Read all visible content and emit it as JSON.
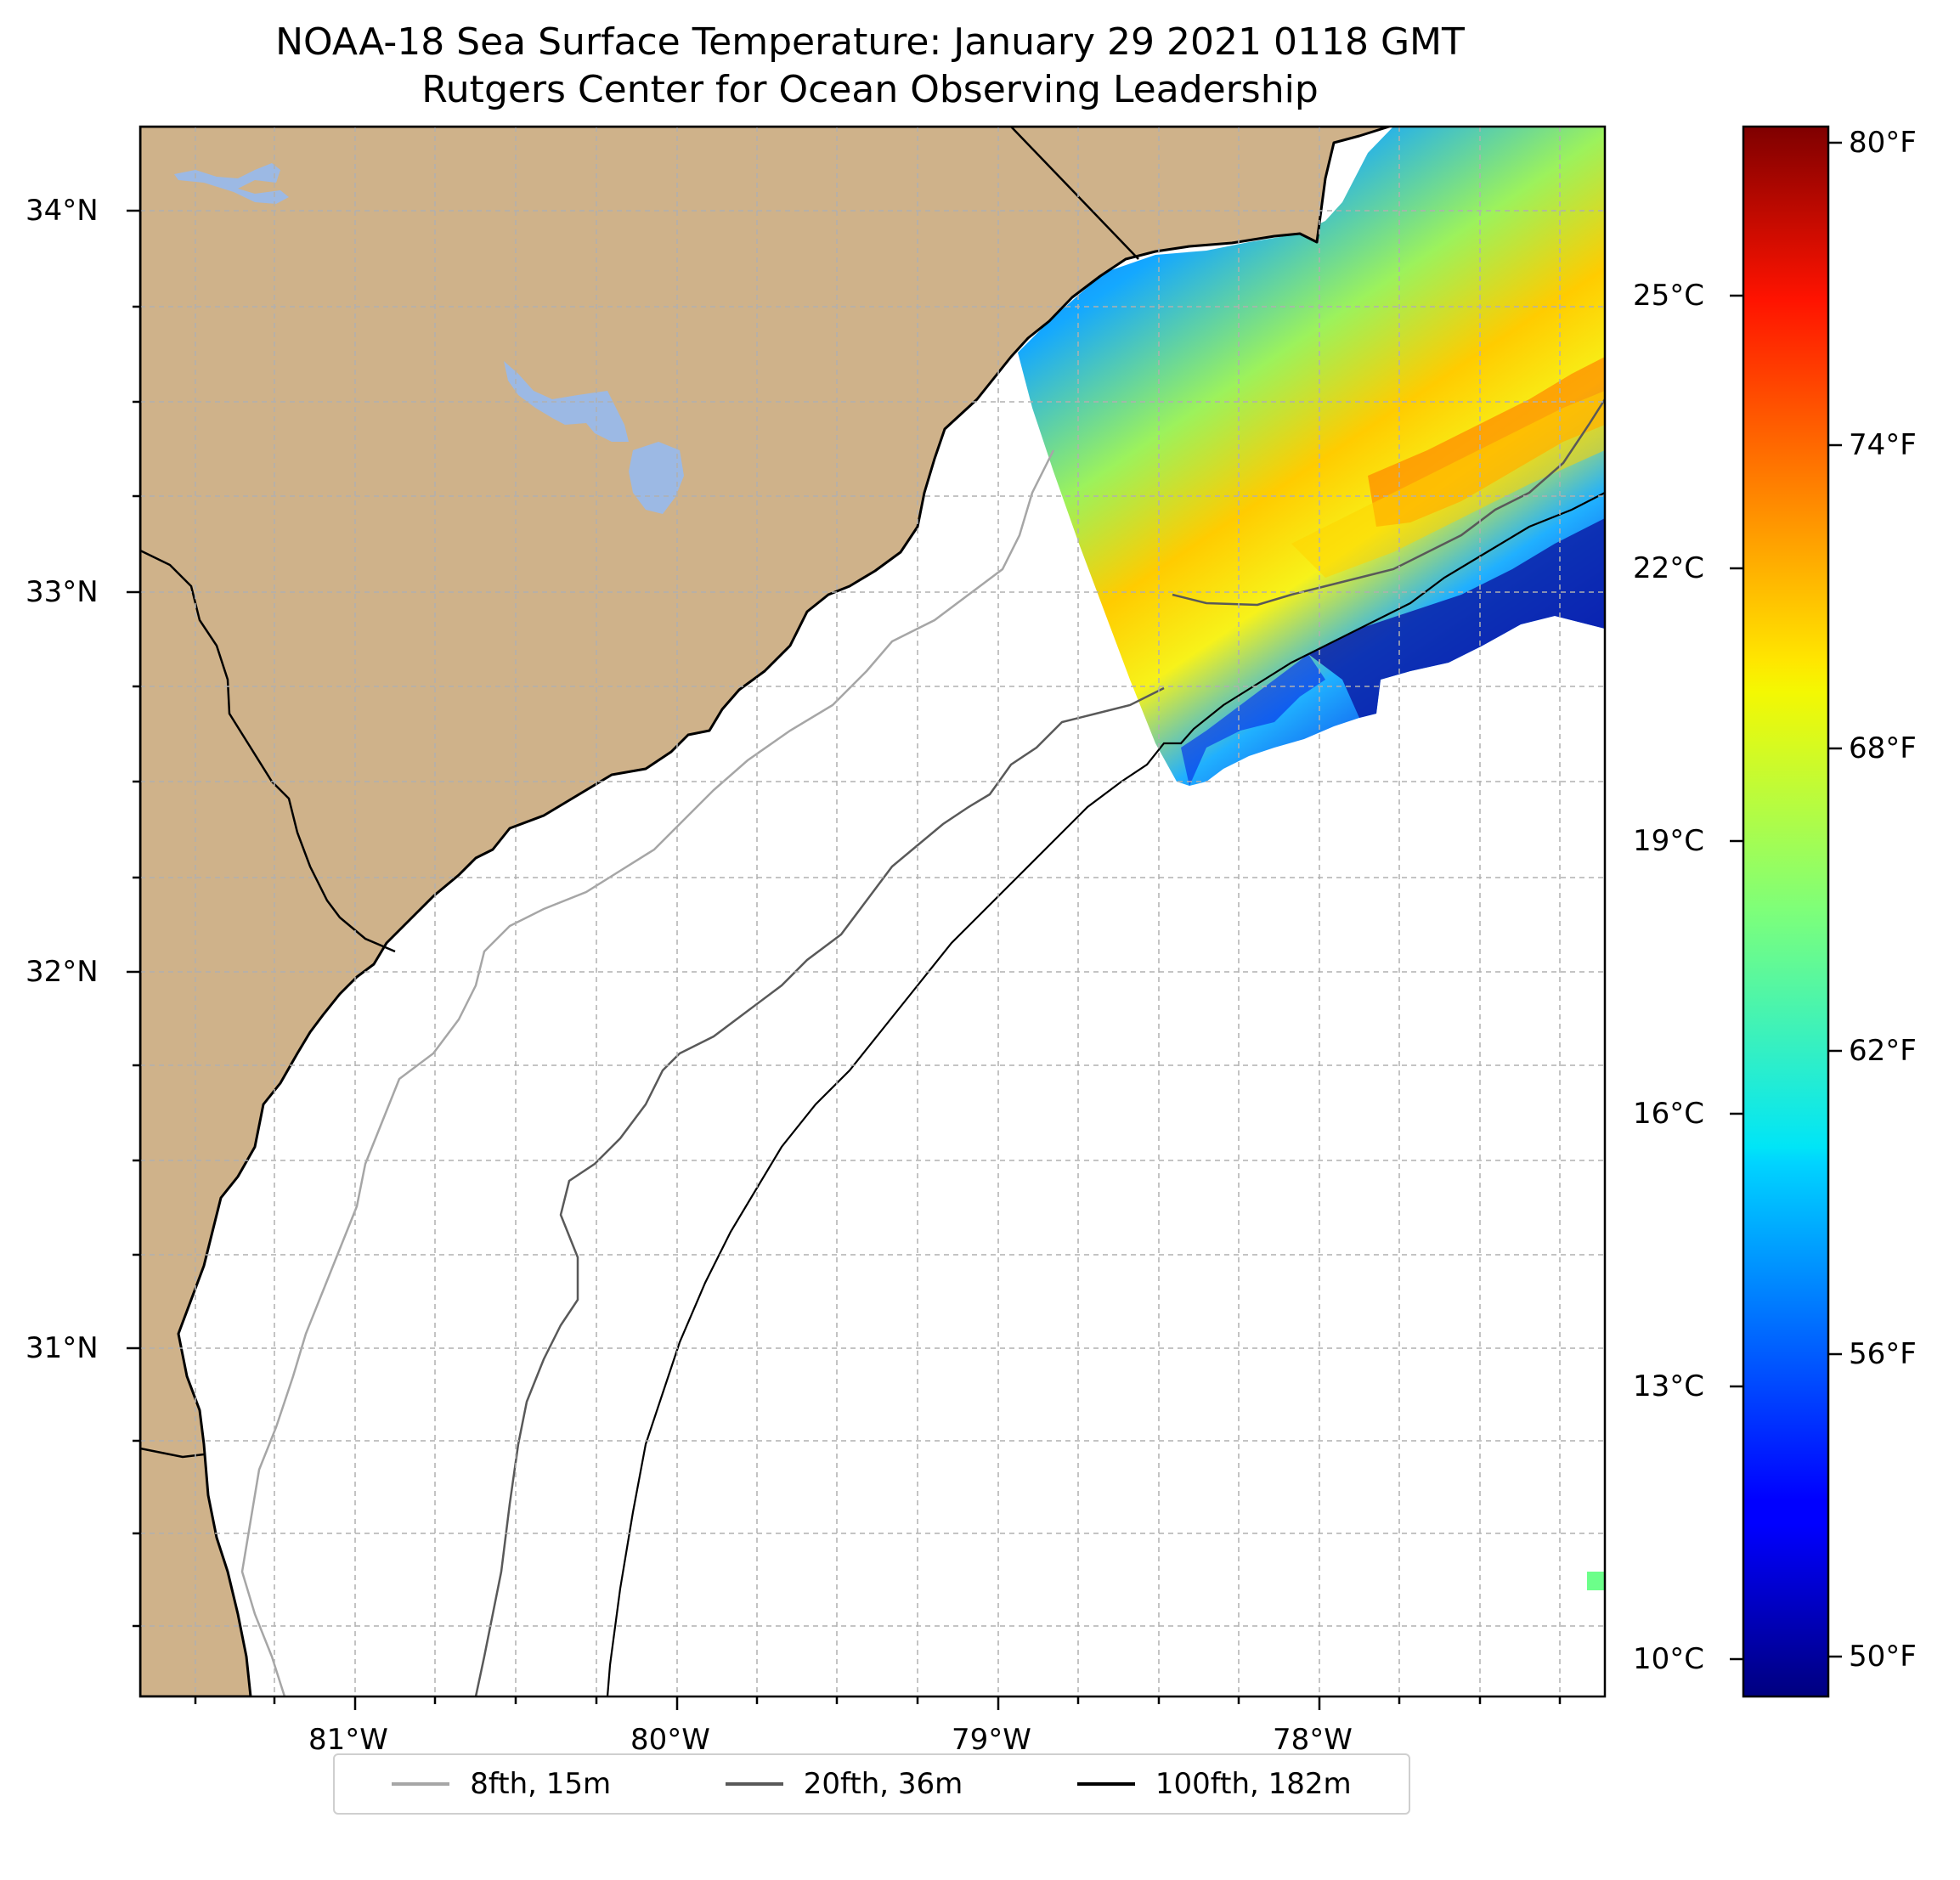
{
  "title": {
    "line1": "NOAA-18 Sea Surface Temperature: January 29 2021 0118 GMT",
    "line2": "Rutgers Center for Ocean Observing Leadership"
  },
  "map": {
    "lon_range": [
      -81.68,
      -77.14
    ],
    "lat_range": [
      30.04,
      34.22
    ],
    "lon_ticks": [
      "81°W",
      "80°W",
      "79°W",
      "78°W"
    ],
    "lat_ticks": [
      "34°N",
      "33°N",
      "32°N",
      "31°N"
    ],
    "land_color": "#cfb28a",
    "lake_color": "#9cb9e4",
    "gridlines": true
  },
  "colorbar": {
    "colormap": "jet",
    "celsius_ticks": [
      "25°C",
      "22°C",
      "19°C",
      "16°C",
      "13°C",
      "10°C"
    ],
    "fahrenheit_ticks": [
      "80°F",
      "74°F",
      "68°F",
      "62°F",
      "56°F",
      "50°F"
    ],
    "range_c": [
      9.5,
      27
    ]
  },
  "legend": {
    "items": [
      {
        "label": "8fth, 15m",
        "color": "#a6a6a6"
      },
      {
        "label": "20fth, 36m",
        "color": "#595959"
      },
      {
        "label": "100fth, 182m",
        "color": "#000000"
      }
    ]
  }
}
